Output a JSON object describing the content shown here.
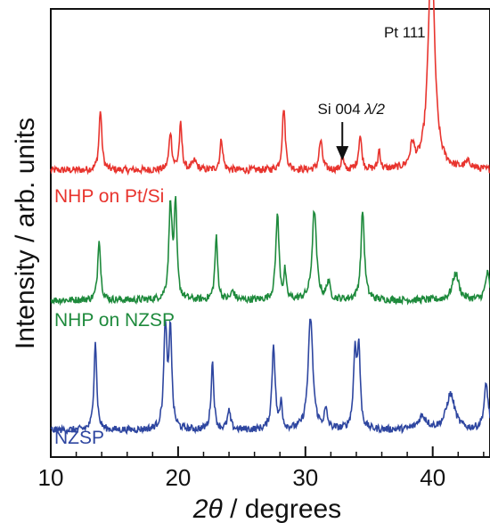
{
  "chart_data": {
    "type": "line",
    "title": "",
    "xlabel": "2θ / degrees",
    "xlabel_parts": {
      "symbol": "2θ",
      "rest": " / degrees"
    },
    "ylabel": "Intensity / arb. units",
    "xlim": [
      10,
      44.5
    ],
    "xticks": [
      10,
      20,
      30,
      40
    ],
    "xticks_minor": [
      12,
      14,
      16,
      18,
      22,
      24,
      26,
      28,
      32,
      34,
      36,
      38,
      42,
      44
    ],
    "y_axis_ticks": false,
    "series": [
      {
        "name": "NHP on Pt/Si",
        "color": "#e8342e",
        "baseline": 0.64,
        "peaks": [
          {
            "x": 13.9,
            "h": 0.135,
            "w": 0.13
          },
          {
            "x": 19.4,
            "h": 0.085,
            "w": 0.13
          },
          {
            "x": 20.2,
            "h": 0.1,
            "w": 0.13
          },
          {
            "x": 21.3,
            "h": 0.02,
            "w": 0.2
          },
          {
            "x": 23.4,
            "h": 0.07,
            "w": 0.13
          },
          {
            "x": 28.3,
            "h": 0.14,
            "w": 0.14
          },
          {
            "x": 31.2,
            "h": 0.065,
            "w": 0.15
          },
          {
            "x": 32.9,
            "h": 0.04,
            "w": 0.08
          },
          {
            "x": 34.3,
            "h": 0.075,
            "w": 0.15
          },
          {
            "x": 35.8,
            "h": 0.045,
            "w": 0.1
          },
          {
            "x": 38.4,
            "h": 0.05,
            "w": 0.2
          },
          {
            "x": 39.9,
            "h": 0.5,
            "w": 0.3
          },
          {
            "x": 42.8,
            "h": 0.015,
            "w": 0.3
          }
        ]
      },
      {
        "name": "NHP on NZSP",
        "color": "#1e8a3c",
        "baseline": 0.35,
        "peaks": [
          {
            "x": 13.8,
            "h": 0.14,
            "w": 0.13
          },
          {
            "x": 19.4,
            "h": 0.21,
            "w": 0.15
          },
          {
            "x": 19.8,
            "h": 0.2,
            "w": 0.13
          },
          {
            "x": 23.0,
            "h": 0.14,
            "w": 0.13
          },
          {
            "x": 24.3,
            "h": 0.02,
            "w": 0.15
          },
          {
            "x": 27.8,
            "h": 0.19,
            "w": 0.15
          },
          {
            "x": 28.4,
            "h": 0.06,
            "w": 0.1
          },
          {
            "x": 30.7,
            "h": 0.2,
            "w": 0.2
          },
          {
            "x": 31.8,
            "h": 0.04,
            "w": 0.15
          },
          {
            "x": 34.5,
            "h": 0.2,
            "w": 0.16
          },
          {
            "x": 41.8,
            "h": 0.06,
            "w": 0.3
          },
          {
            "x": 44.3,
            "h": 0.06,
            "w": 0.2
          }
        ]
      },
      {
        "name": "NZSP",
        "color": "#2e46a0",
        "baseline": 0.06,
        "peaks": [
          {
            "x": 13.5,
            "h": 0.2,
            "w": 0.13
          },
          {
            "x": 19.0,
            "h": 0.23,
            "w": 0.15
          },
          {
            "x": 19.4,
            "h": 0.22,
            "w": 0.13
          },
          {
            "x": 22.7,
            "h": 0.15,
            "w": 0.13
          },
          {
            "x": 24.0,
            "h": 0.04,
            "w": 0.15
          },
          {
            "x": 27.5,
            "h": 0.19,
            "w": 0.15
          },
          {
            "x": 28.1,
            "h": 0.06,
            "w": 0.1
          },
          {
            "x": 30.4,
            "h": 0.25,
            "w": 0.22
          },
          {
            "x": 31.6,
            "h": 0.04,
            "w": 0.15
          },
          {
            "x": 33.9,
            "h": 0.17,
            "w": 0.15
          },
          {
            "x": 34.2,
            "h": 0.17,
            "w": 0.13
          },
          {
            "x": 39.2,
            "h": 0.03,
            "w": 0.4
          },
          {
            "x": 41.4,
            "h": 0.08,
            "w": 0.4
          },
          {
            "x": 44.2,
            "h": 0.1,
            "w": 0.2
          }
        ]
      }
    ],
    "annotations": [
      {
        "text": "Pt 111",
        "x": 39.9
      },
      {
        "text": "Si 004",
        "suffix": "λ/2",
        "x": 32.9
      }
    ]
  }
}
